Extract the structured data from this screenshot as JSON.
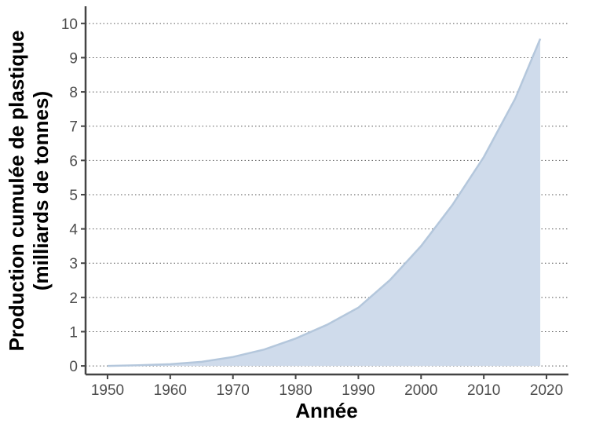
{
  "chart_data": {
    "type": "area",
    "xlabel": "Année",
    "ylabel_line1": "Production cumulée de plastique",
    "ylabel_line2": "(milliards de tonnes)",
    "xlim": [
      1946.5,
      2023.5
    ],
    "ylim": [
      -0.25,
      10.5
    ],
    "x_ticks": [
      1950,
      1960,
      1970,
      1980,
      1990,
      2000,
      2010,
      2020
    ],
    "y_ticks": [
      0,
      1,
      2,
      3,
      4,
      5,
      6,
      7,
      8,
      9,
      10
    ],
    "grid": "horizontal-dotted",
    "colors": {
      "fill": "#cfdbeb",
      "line": "#b4c7dc"
    },
    "series": [
      {
        "x": [
          1950,
          1955,
          1960,
          1965,
          1970,
          1975,
          1980,
          1985,
          1990,
          1995,
          2000,
          2005,
          2010,
          2015,
          2019
        ],
        "values": [
          0.0,
          0.02,
          0.05,
          0.12,
          0.26,
          0.48,
          0.8,
          1.2,
          1.7,
          2.5,
          3.5,
          4.7,
          6.1,
          7.8,
          9.55
        ]
      }
    ]
  }
}
